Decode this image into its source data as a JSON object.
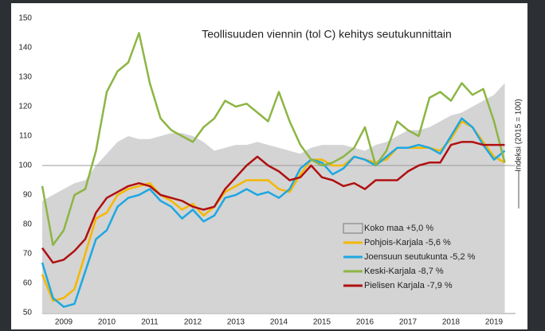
{
  "chart_data": {
    "type": "line",
    "title": "Teollisuuden viennin (tol C) kehitys seutukunnittain",
    "y2_label": "Indeksi (2015 = 100)",
    "x": [
      2009.0,
      2009.25,
      2009.5,
      2009.75,
      2010.0,
      2010.25,
      2010.5,
      2010.75,
      2011.0,
      2011.25,
      2011.5,
      2011.75,
      2012.0,
      2012.25,
      2012.5,
      2012.75,
      2013.0,
      2013.25,
      2013.5,
      2013.75,
      2014.0,
      2014.25,
      2014.5,
      2014.75,
      2015.0,
      2015.25,
      2015.5,
      2015.75,
      2016.0,
      2016.25,
      2016.5,
      2016.75,
      2017.0,
      2017.25,
      2017.5,
      2017.75,
      2018.0,
      2018.25,
      2018.5,
      2018.75,
      2019.0,
      2019.25,
      2019.5,
      2019.75
    ],
    "series": [
      {
        "name": "Koko maa +5,0 %",
        "style": "area",
        "color": "#d4d4d4",
        "values": [
          88,
          90,
          92,
          94,
          95,
          100,
          104,
          108,
          110,
          109,
          109,
          110,
          111,
          111,
          110,
          108,
          105,
          106,
          107,
          107,
          108,
          107,
          106,
          105,
          104,
          106,
          107,
          107,
          107,
          106,
          105,
          107,
          108,
          110,
          112,
          112,
          113,
          115,
          117,
          118,
          120,
          122,
          124,
          128
        ]
      },
      {
        "name": "Pohjois-Karjala -5,6 %",
        "color": "#f4b800",
        "values": [
          63,
          54,
          55,
          58,
          70,
          82,
          84,
          90,
          92,
          93,
          94,
          90,
          88,
          85,
          87,
          83,
          86,
          91,
          93,
          95,
          95,
          95,
          92,
          91,
          97,
          102,
          102,
          100,
          100,
          103,
          102,
          101,
          102,
          106,
          106,
          106,
          106,
          105,
          109,
          115,
          113,
          108,
          103,
          101
        ]
      },
      {
        "name": "Joensuun seutukunta -5,2 %",
        "color": "#1ea7e1",
        "values": [
          67,
          55,
          52,
          53,
          64,
          75,
          78,
          86,
          89,
          90,
          92,
          88,
          86,
          82,
          85,
          81,
          83,
          89,
          90,
          92,
          90,
          91,
          89,
          92,
          99,
          102,
          101,
          97,
          99,
          103,
          102,
          100,
          103,
          106,
          106,
          107,
          106,
          104,
          110,
          116,
          113,
          107,
          102,
          105
        ]
      },
      {
        "name": "Keski-Karjala -8,7 %",
        "color": "#8db544",
        "values": [
          93,
          73,
          78,
          90,
          92,
          105,
          125,
          132,
          135,
          145,
          128,
          116,
          112,
          110,
          108,
          113,
          116,
          122,
          120,
          121,
          118,
          115,
          125,
          115,
          107,
          102,
          100,
          101,
          103,
          106,
          113,
          100,
          105,
          115,
          112,
          110,
          123,
          125,
          122,
          128,
          124,
          126,
          115,
          101
        ]
      },
      {
        "name": "Pielisen Karjala -7,9 %",
        "color": "#b01010",
        "values": [
          72,
          67,
          68,
          71,
          75,
          84,
          89,
          91,
          93,
          94,
          93,
          90,
          89,
          88,
          86,
          85,
          86,
          92,
          96,
          100,
          103,
          100,
          98,
          95,
          96,
          100,
          96,
          95,
          93,
          94,
          92,
          95,
          95,
          95,
          98,
          100,
          101,
          101,
          107,
          108,
          108,
          107,
          107,
          107
        ]
      }
    ],
    "reference_line": 100,
    "xlim": [
      2009,
      2020
    ],
    "xticks": [
      {
        "value": 2009.5,
        "label": "2009"
      },
      {
        "value": 2010.5,
        "label": "2010"
      },
      {
        "value": 2011.5,
        "label": "2011"
      },
      {
        "value": 2012.5,
        "label": "2012"
      },
      {
        "value": 2013.5,
        "label": "2013"
      },
      {
        "value": 2014.5,
        "label": "2014"
      },
      {
        "value": 2015.5,
        "label": "2015"
      },
      {
        "value": 2016.5,
        "label": "2016"
      },
      {
        "value": 2017.5,
        "label": "2017"
      },
      {
        "value": 2018.5,
        "label": "2018"
      },
      {
        "value": 2019.5,
        "label": "2019"
      }
    ],
    "ylim": [
      50,
      150
    ],
    "yticks": [
      50,
      60,
      70,
      80,
      90,
      100,
      110,
      120,
      130,
      140,
      150
    ]
  }
}
